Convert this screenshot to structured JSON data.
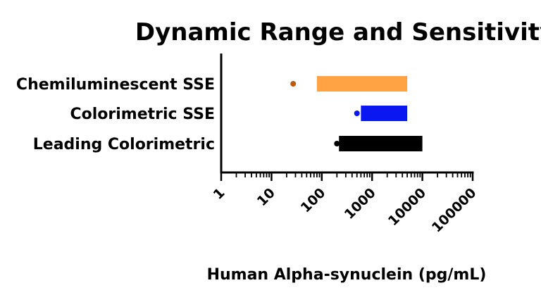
{
  "chart_data": {
    "type": "bar",
    "title": "Dynamic Range and Sensitivity",
    "xlabel": "Human Alpha-synuclein (pg/mL)",
    "ylabel": "",
    "x_scale": "log",
    "xlim": [
      1,
      100000
    ],
    "x_tick_labels": [
      "1",
      "10",
      "100",
      "1000",
      "10000",
      "100000"
    ],
    "categories": [
      "Chemiluminescent SSE",
      "Colorimetric SSE",
      "Leading Colorimetric"
    ],
    "series": [
      {
        "range_start": [
          80,
          600,
          220
        ],
        "range_end": [
          5000,
          5000,
          10000
        ],
        "sensitivity": [
          27,
          500,
          200
        ]
      }
    ],
    "colors": {
      "bars": [
        "#FFA345",
        "#0A17F0",
        "#000000"
      ],
      "points": [
        "#B85A10",
        "#0A17F0",
        "#000000"
      ]
    },
    "grid": false
  }
}
